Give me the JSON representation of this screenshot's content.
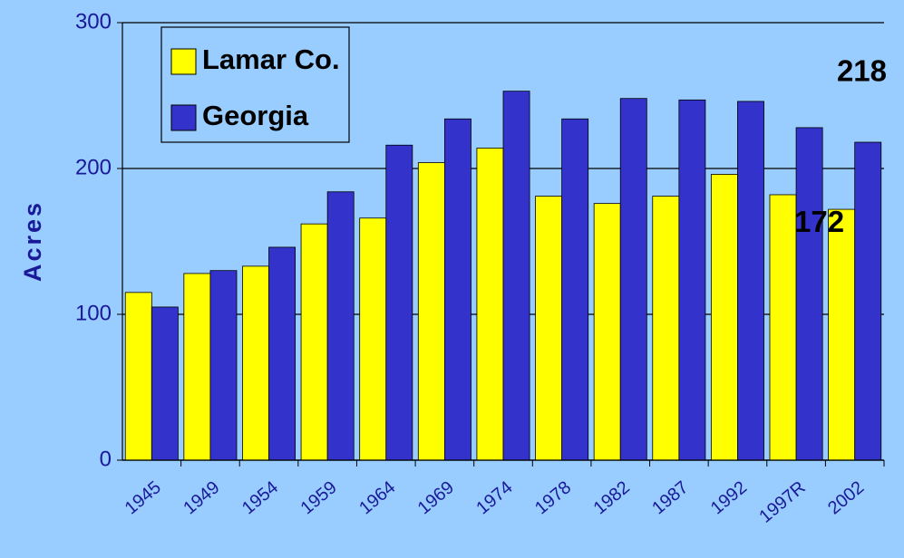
{
  "chart_data": {
    "type": "bar",
    "y_label": "Acres",
    "categories": [
      "1945",
      "1949",
      "1954",
      "1959",
      "1964",
      "1969",
      "1974",
      "1978",
      "1982",
      "1987",
      "1992",
      "1997R",
      "2002"
    ],
    "series": [
      {
        "name": "Lamar Co.",
        "color": "#ffff00",
        "values": [
          115,
          128,
          133,
          162,
          166,
          204,
          214,
          181,
          176,
          181,
          196,
          182,
          172
        ],
        "value_labels": [
          null,
          null,
          null,
          null,
          null,
          null,
          null,
          null,
          null,
          null,
          null,
          null,
          "172"
        ]
      },
      {
        "name": "Georgia",
        "color": "#3333cc",
        "values": [
          105,
          130,
          146,
          184,
          216,
          234,
          253,
          234,
          248,
          247,
          246,
          228,
          218
        ],
        "value_labels": [
          null,
          null,
          null,
          null,
          null,
          null,
          null,
          null,
          null,
          null,
          null,
          null,
          "218"
        ]
      }
    ],
    "ylim": [
      0,
      300
    ],
    "yticks": [
      0,
      100,
      200,
      300
    ],
    "grid": true,
    "legend": "top-left"
  }
}
